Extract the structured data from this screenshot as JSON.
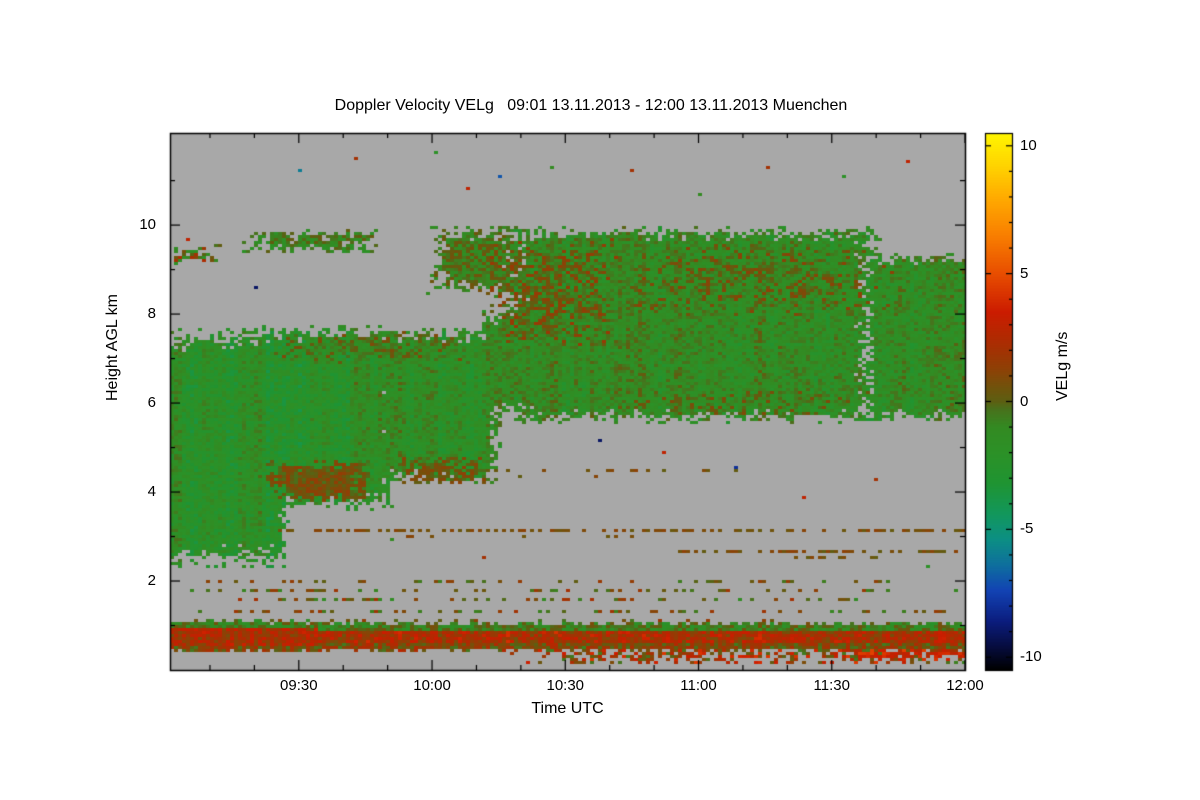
{
  "chart_data": {
    "type": "heatmap",
    "title": "Doppler Velocity VELg   09:01 13.11.2013 - 12:00 13.11.2013 Muenchen",
    "xlabel": "Time UTC",
    "ylabel": "Height AGL km",
    "x_range_minutes": [
      541,
      720
    ],
    "y_range_km": [
      0,
      12.07
    ],
    "x_ticks": [
      {
        "minute": 570,
        "label": "09:30"
      },
      {
        "minute": 600,
        "label": "10:00"
      },
      {
        "minute": 630,
        "label": "10:30"
      },
      {
        "minute": 660,
        "label": "11:00"
      },
      {
        "minute": 690,
        "label": "11:30"
      },
      {
        "minute": 720,
        "label": "12:00"
      }
    ],
    "y_ticks": [
      {
        "km": 2,
        "label": "2"
      },
      {
        "km": 4,
        "label": "4"
      },
      {
        "km": 6,
        "label": "6"
      },
      {
        "km": 8,
        "label": "8"
      },
      {
        "km": 10,
        "label": "10"
      }
    ],
    "background_nodata_color": "#a8a8a8",
    "colorbar": {
      "label": "VELg m/s",
      "range": [
        -10.5,
        10.5
      ],
      "ticks": [
        {
          "v": 10,
          "label": "10"
        },
        {
          "v": 5,
          "label": "5"
        },
        {
          "v": 0,
          "label": "0"
        },
        {
          "v": -5,
          "label": "-5"
        },
        {
          "v": -10,
          "label": "-10"
        }
      ],
      "stops": [
        [
          -10.5,
          "#000000"
        ],
        [
          -9.6,
          "#060c3e"
        ],
        [
          -8.6,
          "#0b1d7e"
        ],
        [
          -7.4,
          "#1243b4"
        ],
        [
          -6.4,
          "#0e6f9e"
        ],
        [
          -5.4,
          "#0c8f84"
        ],
        [
          -4.4,
          "#12975c"
        ],
        [
          -3.2,
          "#1f9432"
        ],
        [
          -2.0,
          "#2c9127"
        ],
        [
          -1.0,
          "#338a22"
        ],
        [
          -0.3,
          "#49711c"
        ],
        [
          0.0,
          "#5d5f12"
        ],
        [
          0.5,
          "#6f540c"
        ],
        [
          1.2,
          "#8c4206"
        ],
        [
          2.2,
          "#a92e02"
        ],
        [
          3.5,
          "#cc1c00"
        ],
        [
          5.0,
          "#e84e00"
        ],
        [
          6.5,
          "#f97f00"
        ],
        [
          8.0,
          "#ffac00"
        ],
        [
          9.2,
          "#ffd300"
        ],
        [
          10.5,
          "#fff600"
        ]
      ]
    },
    "regions": [
      {
        "name": "left-cloud-a",
        "t": [
          541,
          568
        ],
        "h": [
          2.3,
          7.7
        ],
        "mean": -1.9,
        "amp": 1.2,
        "stri": 1.0,
        "edge": 0.1
      },
      {
        "name": "left-cloud-b",
        "t": [
          560,
          592
        ],
        "h": [
          3.6,
          7.75
        ],
        "mean": -1.9,
        "amp": 1.2,
        "stri": 1.0,
        "edge": 0.12
      },
      {
        "name": "mid-cloud",
        "t": [
          586,
          616
        ],
        "h": [
          4.15,
          7.7
        ],
        "mean": -1.7,
        "amp": 1.2,
        "stri": 0.9,
        "edge": 0.12
      },
      {
        "name": "olive-patch-low",
        "t": [
          562,
          587
        ],
        "h": [
          3.75,
          4.7
        ],
        "mean": 0.6,
        "amp": 0.9,
        "edge": 0.25
      },
      {
        "name": "olive-patch-low2",
        "t": [
          592,
          612
        ],
        "h": [
          4.15,
          4.8
        ],
        "mean": 0.5,
        "amp": 0.8,
        "edge": 0.3,
        "cov": 0.8
      },
      {
        "name": "olive-top-streak",
        "t": [
          564,
          612
        ],
        "h": [
          6.9,
          7.6
        ],
        "mean": -0.5,
        "amp": 1.5,
        "edge": 0.3,
        "cov": 0.75
      },
      {
        "name": "bridge",
        "t": [
          611,
          625
        ],
        "h": [
          5.7,
          8.1
        ],
        "mean": -1.2,
        "amp": 1.2,
        "edge": 0.15
      },
      {
        "name": "upper-wisp",
        "t": [
          599,
          621
        ],
        "h": [
          8.4,
          10.0
        ],
        "mean": -0.5,
        "amp": 1.2,
        "edge": 0.25
      },
      {
        "name": "deck-main",
        "t": [
          617,
          701
        ],
        "h": [
          5.55,
          9.95
        ],
        "mean": -1.4,
        "amp": 1.2,
        "stri": 0.7,
        "edge": 0.07
      },
      {
        "name": "deck-right",
        "t": [
          698,
          720
        ],
        "h": [
          5.6,
          9.35
        ],
        "mean": -1.4,
        "amp": 1.2,
        "stri": 0.7,
        "edge": 0.07
      },
      {
        "name": "deck-olive-left",
        "t": [
          613,
          642
        ],
        "h": [
          7.3,
          9.7
        ],
        "mean": 0.3,
        "amp": 1.4,
        "edge": 0.3,
        "cov": 0.75
      },
      {
        "name": "deck-olive-upper",
        "t": [
          640,
          705
        ],
        "h": [
          7.9,
          9.6
        ],
        "mean": -0.3,
        "amp": 1.6,
        "edge": 0.3,
        "cov": 0.65
      },
      {
        "name": "deck-olive-bottom",
        "t": [
          640,
          700
        ],
        "h": [
          5.7,
          6.3
        ],
        "mean": -0.4,
        "amp": 1.4,
        "edge": 0.4,
        "cov": 0.5
      },
      {
        "name": "cirrus-streak",
        "t": [
          556,
          589
        ],
        "h": [
          9.35,
          9.9
        ],
        "mean": -0.9,
        "amp": 1.2,
        "edge": 0.3,
        "cov": 0.85
      },
      {
        "name": "left-high-specks",
        "t": [
          542,
          553
        ],
        "h": [
          9.1,
          9.55
        ],
        "mean": 0.3,
        "amp": 2.2,
        "edge": 0.3,
        "cov": 0.6
      },
      {
        "name": "boundary-layer-band",
        "band": true,
        "t": [
          541,
          720
        ],
        "h": [
          0.42,
          1.08
        ],
        "mean": 1.8,
        "amp": 1.5,
        "stri": 0.5,
        "edge": 0.1
      },
      {
        "name": "band-left-thick",
        "band": true,
        "t": [
          541,
          576
        ],
        "h": [
          0.38,
          1.15
        ],
        "mean": 1.6,
        "amp": 1.5,
        "edge": 0.15
      },
      {
        "name": "surface-speckle",
        "t": [
          618,
          720
        ],
        "h": [
          0.12,
          0.48
        ],
        "mean": 1.8,
        "amp": 2.6,
        "edge": 0.2,
        "cov": 0.5
      },
      {
        "name": "surface-red-line",
        "t": [
          690,
          720
        ],
        "h": [
          0.28,
          0.45
        ],
        "mean": 3.5,
        "amp": 1.2,
        "edge": 0.2,
        "cov": 0.8
      }
    ],
    "speckle_rows": [
      {
        "h": 3.15,
        "t": [
          565,
          720
        ],
        "cov": 0.5,
        "mean": 0.7,
        "amp": 0.5
      },
      {
        "h": 3.05,
        "t": [
          590,
          650
        ],
        "cov": 0.12,
        "mean": 0.7,
        "amp": 0.5
      },
      {
        "h": 2.7,
        "t": [
          656,
          720
        ],
        "cov": 0.6,
        "mean": 0.7,
        "amp": 0.6
      },
      {
        "h": 2.58,
        "t": [
          682,
          700
        ],
        "cov": 0.5,
        "mean": 0.6,
        "amp": 0.6
      },
      {
        "h": 2.05,
        "t": [
          548,
          715
        ],
        "cov": 0.18,
        "mean": 0.5,
        "amp": 1.2
      },
      {
        "h": 1.85,
        "t": [
          545,
          718
        ],
        "cov": 0.3,
        "mean": 0.6,
        "amp": 1.5
      },
      {
        "h": 1.6,
        "t": [
          550,
          700
        ],
        "cov": 0.33,
        "mean": 0.4,
        "amp": 1.8
      },
      {
        "h": 1.35,
        "t": [
          543,
          716
        ],
        "cov": 0.28,
        "mean": 0.5,
        "amp": 1.5
      },
      {
        "h": 1.15,
        "t": [
          560,
          690
        ],
        "cov": 0.15,
        "mean": 0.6,
        "amp": 1.2
      },
      {
        "h": 4.5,
        "t": [
          596,
          668
        ],
        "cov": 0.22,
        "mean": 0.6,
        "amp": 0.7
      },
      {
        "h": 4.35,
        "t": [
          612,
          640
        ],
        "cov": 0.1,
        "mean": 0.6,
        "amp": 0.6
      }
    ],
    "specks": [
      [
        545,
        9.7,
        3
      ],
      [
        549,
        9.3,
        -2
      ],
      [
        560,
        8.6,
        -9
      ],
      [
        570,
        11.2,
        -6
      ],
      [
        583,
        11.5,
        2
      ],
      [
        591,
        2.9,
        -1
      ],
      [
        601,
        11.6,
        -2
      ],
      [
        608,
        10.8,
        3
      ],
      [
        612,
        2.55,
        2
      ],
      [
        615,
        11.1,
        -7
      ],
      [
        627,
        11.3,
        -1
      ],
      [
        638,
        5.15,
        -9
      ],
      [
        645,
        11.2,
        2
      ],
      [
        652,
        4.9,
        3
      ],
      [
        660,
        10.7,
        -1
      ],
      [
        668,
        4.55,
        -8
      ],
      [
        676,
        11.3,
        2
      ],
      [
        684,
        3.9,
        3
      ],
      [
        693,
        11.1,
        -2
      ],
      [
        700,
        4.3,
        2
      ],
      [
        707,
        11.4,
        3
      ],
      [
        712,
        2.3,
        -2
      ]
    ]
  }
}
